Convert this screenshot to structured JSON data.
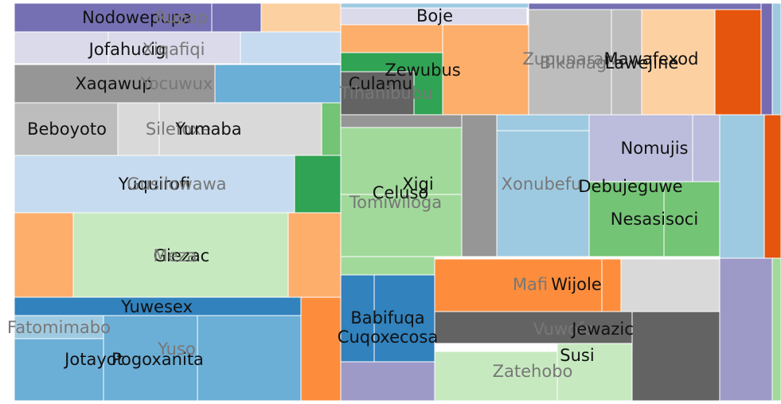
{
  "chart_data": {
    "type": "treemap",
    "title": "",
    "nodes": [
      {
        "label": "Nodowepupa",
        "group": "purple",
        "color": "#7570b3",
        "label_color": "#111111"
      },
      {
        "label": "Rupap",
        "group": "purple",
        "color": "#7570b3",
        "label_color": "#777777"
      },
      {
        "label": "Jofahucig",
        "group": "purple",
        "color": "#dadaeb",
        "label_color": "#111111"
      },
      {
        "label": "Xiqafiqi",
        "group": "purple",
        "color": "#dadaeb",
        "label_color": "#777777"
      },
      {
        "label": "Xaqawup",
        "group": "grey",
        "color": "#969696",
        "label_color": "#111111"
      },
      {
        "label": "Yocuwux",
        "group": "grey",
        "color": "#969696",
        "label_color": "#777777"
      },
      {
        "label": "Beboyoto",
        "group": "grey",
        "color": "#bdbdbd",
        "label_color": "#111111"
      },
      {
        "label": "Silefoxe",
        "group": "grey",
        "color": "#d9d9d9",
        "label_color": "#777777"
      },
      {
        "label": "Yumaba",
        "group": "grey",
        "color": "#d9d9d9",
        "label_color": "#111111"
      },
      {
        "label": "Yuquirofi",
        "group": "blue",
        "color": "#c6dbef",
        "label_color": "#111111"
      },
      {
        "label": "Gusilowawa",
        "group": "blue",
        "color": "#c6dbef",
        "label_color": "#777777"
      },
      {
        "label": "Giezac",
        "group": "green",
        "color": "#c7e9c0",
        "label_color": "#111111"
      },
      {
        "label": "Meza",
        "group": "green",
        "color": "#c7e9c0",
        "label_color": "#777777"
      },
      {
        "label": "Yuwesex",
        "group": "blue",
        "color": "#3182bd",
        "label_color": "#111111"
      },
      {
        "label": "Fatomimabo",
        "group": "blue",
        "color": "#9ecae1",
        "label_color": "#777777"
      },
      {
        "label": "Jotayot",
        "group": "blue",
        "color": "#6baed6",
        "label_color": "#111111"
      },
      {
        "label": "Pogoxanita",
        "group": "blue",
        "color": "#6baed6",
        "label_color": "#111111"
      },
      {
        "label": "Yuso",
        "group": "blue",
        "color": "#6baed6",
        "label_color": "#777777"
      },
      {
        "label": "Boje",
        "group": "purple",
        "color": "#dadaeb",
        "label_color": "#111111"
      },
      {
        "label": "Zewubus",
        "group": "green",
        "color": "#31a354",
        "label_color": "#111111"
      },
      {
        "label": "Culamu",
        "group": "grey",
        "color": "#636363",
        "label_color": "#111111"
      },
      {
        "label": "Tihanibubu",
        "group": "grey",
        "color": "#636363",
        "label_color": "#777777"
      },
      {
        "label": "Zupunaraw",
        "group": "grey",
        "color": "#bdbdbd",
        "label_color": "#777777"
      },
      {
        "label": "Bikanag",
        "group": "grey",
        "color": "#bdbdbd",
        "label_color": "#777777"
      },
      {
        "label": "Mawafexod",
        "group": "orange",
        "color": "#fdd0a2",
        "label_color": "#111111"
      },
      {
        "label": "Lawejine",
        "group": "orange",
        "color": "#fdd0a2",
        "label_color": "#111111"
      },
      {
        "label": "Xigi",
        "group": "green",
        "color": "#a1d99b",
        "label_color": "#111111"
      },
      {
        "label": "Celuso",
        "group": "green",
        "color": "#a1d99b",
        "label_color": "#111111"
      },
      {
        "label": "Tomiwiloga",
        "group": "green",
        "color": "#a1d99b",
        "label_color": "#777777"
      },
      {
        "label": "Xonubefu",
        "group": "blue",
        "color": "#9ecae1",
        "label_color": "#777777"
      },
      {
        "label": "Nomujis",
        "group": "purple",
        "color": "#bcbddc",
        "label_color": "#111111"
      },
      {
        "label": "Debujeguwe",
        "group": "green",
        "color": "#74c476",
        "label_color": "#111111"
      },
      {
        "label": "Nesasisoci",
        "group": "green",
        "color": "#74c476",
        "label_color": "#111111"
      },
      {
        "label": "Babifuqa",
        "group": "blue",
        "color": "#3182bd",
        "label_color": "#111111"
      },
      {
        "label": "Cuqoxecosa",
        "group": "blue",
        "color": "#3182bd",
        "label_color": "#111111"
      },
      {
        "label": "Mafi",
        "group": "orange",
        "color": "#fd8d3c",
        "label_color": "#777777"
      },
      {
        "label": "Wijole",
        "group": "orange",
        "color": "#fd8d3c",
        "label_color": "#111111"
      },
      {
        "label": "Vuwofe",
        "group": "grey",
        "color": "#636363",
        "label_color": "#777777"
      },
      {
        "label": "Jewazic",
        "group": "grey",
        "color": "#636363",
        "label_color": "#111111"
      },
      {
        "label": "Susi",
        "group": "green",
        "color": "#c7e9c0",
        "label_color": "#111111"
      },
      {
        "label": "Zatehobo",
        "group": "green",
        "color": "#c7e9c0",
        "label_color": "#777777"
      }
    ]
  }
}
